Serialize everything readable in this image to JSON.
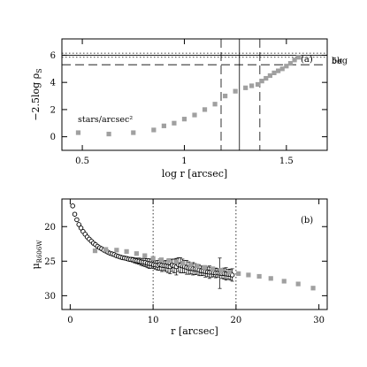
{
  "chart_data": [
    {
      "type": "scatter",
      "panel_label": "(a)",
      "xlabel": "log r [arcsec]",
      "ylabel": "−2.5log ρs",
      "ylabel_main": "−2.5log ρ",
      "ylabel_sub": "S",
      "xlim": [
        0.4,
        1.7
      ],
      "ylim": [
        7.2,
        -1.0
      ],
      "y_inverted": true,
      "x_ticks": [
        0.5,
        1,
        1.5
      ],
      "x_tick_labels": [
        "0.5",
        "1",
        "1.5"
      ],
      "y_ticks": [
        0,
        2,
        4,
        6
      ],
      "y_tick_labels": [
        "0",
        "2",
        "4",
        "6"
      ],
      "grid": false,
      "series": [
        {
          "marker": "square",
          "color": "#a0a0a0",
          "x": [
            0.48,
            0.63,
            0.75,
            0.85,
            0.9,
            0.95,
            1.0,
            1.05,
            1.1,
            1.15,
            1.2,
            1.25,
            1.3,
            1.33,
            1.36,
            1.38,
            1.4,
            1.42,
            1.44,
            1.46,
            1.48,
            1.5,
            1.52,
            1.54,
            1.56
          ],
          "y": [
            0.3,
            0.2,
            0.3,
            0.5,
            0.8,
            1.0,
            1.3,
            1.6,
            2.0,
            2.4,
            3.0,
            3.35,
            3.6,
            3.75,
            3.85,
            4.1,
            4.3,
            4.5,
            4.7,
            4.85,
            5.0,
            5.2,
            5.4,
            5.65,
            5.85
          ]
        }
      ],
      "vertical_lines": [
        {
          "x": 1.18,
          "style": "dashed"
        },
        {
          "x": 1.27,
          "style": "solid"
        },
        {
          "x": 1.37,
          "style": "dashed"
        }
      ],
      "horizontal_lines": [
        {
          "y": 5.3,
          "style": "dashed",
          "label": "5σ"
        },
        {
          "y": 5.85,
          "style": "dotted"
        },
        {
          "y": 6.0,
          "style": "solid",
          "label": "bkg"
        },
        {
          "y": 6.15,
          "style": "dotted"
        }
      ],
      "annotation": "stars/arcsec²"
    },
    {
      "type": "scatter",
      "panel_label": "(b)",
      "xlabel": "r [arcsec]",
      "ylabel": "μR606W",
      "ylabel_main": "μ",
      "ylabel_sub": "R606W",
      "xlim": [
        -1,
        31
      ],
      "ylim": [
        16,
        32
      ],
      "y_inverted": true,
      "x_ticks": [
        0,
        10,
        20,
        30
      ],
      "x_tick_labels": [
        "0",
        "10",
        "20",
        "30"
      ],
      "y_ticks": [
        20,
        25,
        30
      ],
      "y_tick_labels": [
        "20",
        "25",
        "30"
      ],
      "grid": false,
      "vertical_lines": [
        {
          "x": 10,
          "style": "dotted"
        },
        {
          "x": 20,
          "style": "dotted"
        }
      ],
      "series": [
        {
          "marker": "circle",
          "color": "#000000",
          "x": [
            0.3,
            0.55,
            0.8,
            1.05,
            1.3,
            1.55,
            1.8,
            2.05,
            2.3,
            2.55,
            2.8,
            3.05,
            3.3,
            3.55,
            3.8,
            4.05,
            4.3,
            4.55,
            4.8,
            5.05,
            5.3,
            5.55,
            5.8,
            6.05,
            6.3,
            6.55,
            6.8,
            7.05,
            7.3,
            7.55,
            7.8,
            8.05,
            8.3,
            8.55,
            8.8,
            9.05,
            9.3,
            9.55,
            9.8,
            10.05,
            10.3,
            10.55,
            10.8,
            11.05,
            11.3,
            11.55,
            11.8,
            12.05,
            12.3,
            12.55,
            12.8,
            13.05,
            13.3,
            13.55,
            13.8,
            14.05,
            14.3,
            14.55,
            14.8,
            15.05,
            15.3,
            15.55,
            15.8,
            16.05,
            16.3,
            16.55,
            16.8,
            17.05,
            17.3,
            17.55,
            17.8,
            18.05,
            18.3,
            18.55,
            18.8,
            19.05,
            19.3,
            19.55
          ],
          "y": [
            17.0,
            18.2,
            19.0,
            19.7,
            20.2,
            20.7,
            21.1,
            21.5,
            21.8,
            22.1,
            22.4,
            22.6,
            22.85,
            23.05,
            23.2,
            23.4,
            23.55,
            23.7,
            23.85,
            23.95,
            24.05,
            24.2,
            24.3,
            24.4,
            24.5,
            24.55,
            24.6,
            24.7,
            24.75,
            24.8,
            24.9,
            24.95,
            25.0,
            25.1,
            25.15,
            25.2,
            25.3,
            25.35,
            25.4,
            25.5,
            25.55,
            25.6,
            25.5,
            25.6,
            25.65,
            25.7,
            25.75,
            25.8,
            25.6,
            25.7,
            25.8,
            25.5,
            25.6,
            25.7,
            25.8,
            25.9,
            26.0,
            26.05,
            26.1,
            26.15,
            26.2,
            26.3,
            26.4,
            26.45,
            26.5,
            26.55,
            26.6,
            26.6,
            26.65,
            26.7,
            26.7,
            26.75,
            26.8,
            26.8,
            26.85,
            26.9,
            26.95,
            27.0
          ],
          "yerr": [
            0.05,
            0.05,
            0.05,
            0.05,
            0.05,
            0.06,
            0.06,
            0.06,
            0.07,
            0.07,
            0.08,
            0.08,
            0.09,
            0.1,
            0.1,
            0.11,
            0.12,
            0.13,
            0.14,
            0.15,
            0.16,
            0.17,
            0.18,
            0.2,
            0.21,
            0.23,
            0.25,
            0.27,
            0.3,
            0.33,
            0.36,
            0.4,
            0.45,
            0.5,
            0.55,
            0.6,
            0.65,
            0.7,
            0.6,
            0.55,
            0.6,
            0.7,
            0.8,
            0.9,
            0.7,
            0.8,
            0.9,
            1.0,
            0.9,
            1.0,
            1.2,
            1.0,
            1.1,
            1.0,
            0.9,
            1.0,
            0.9,
            0.8,
            0.9,
            0.8,
            0.7,
            0.8,
            0.7,
            0.6,
            0.8,
            0.7,
            0.9,
            0.7,
            0.6,
            0.7,
            0.6,
            2.2,
            0.7,
            0.8,
            0.9,
            0.7,
            0.8,
            0.9
          ]
        },
        {
          "marker": "square",
          "color": "#a0a0a0",
          "x": [
            3.0,
            4.3,
            5.6,
            6.8,
            8.0,
            9.0,
            10.0,
            11.0,
            11.9,
            12.8,
            13.6,
            14.5,
            15.3,
            16.2,
            17.2,
            18.2,
            19.2,
            20.3,
            21.5,
            22.8,
            24.2,
            25.8,
            27.5,
            29.3
          ],
          "y": [
            23.5,
            23.3,
            23.4,
            23.6,
            23.9,
            24.2,
            24.6,
            24.8,
            24.9,
            25.1,
            25.3,
            25.5,
            25.7,
            25.9,
            26.1,
            26.3,
            26.6,
            26.8,
            27.0,
            27.2,
            27.5,
            27.9,
            28.3,
            28.9
          ]
        }
      ]
    }
  ]
}
